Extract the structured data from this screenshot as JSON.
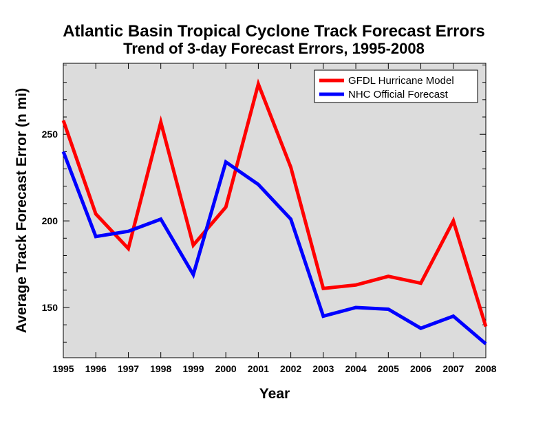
{
  "chart_data": {
    "type": "line",
    "title": "Atlantic Basin Tropical Cyclone Track Forecast Errors",
    "subtitle": "Trend of 3-day Forecast Errors, 1995-2008",
    "xlabel": "Year",
    "ylabel": "Average Track Forecast Error (n mi)",
    "x": [
      1995,
      1996,
      1997,
      1998,
      1999,
      2000,
      2001,
      2002,
      2003,
      2004,
      2005,
      2006,
      2007,
      2008
    ],
    "xlim": [
      1995,
      2008
    ],
    "ylim": [
      121,
      291
    ],
    "yticks": [
      150,
      200,
      250
    ],
    "grid": false,
    "legend_position": "top-right",
    "plot_background": "#dcdcdc",
    "series": [
      {
        "name": "GFDL Hurricane Model",
        "color": "#ff0000",
        "values": [
          258,
          204,
          184,
          257,
          186,
          208,
          279,
          231,
          161,
          163,
          168,
          164,
          200,
          139
        ]
      },
      {
        "name": "NHC Official Forecast",
        "color": "#0000ff",
        "values": [
          240,
          191,
          194,
          201,
          169,
          234,
          221,
          201,
          145,
          150,
          149,
          138,
          145,
          129
        ]
      }
    ]
  }
}
